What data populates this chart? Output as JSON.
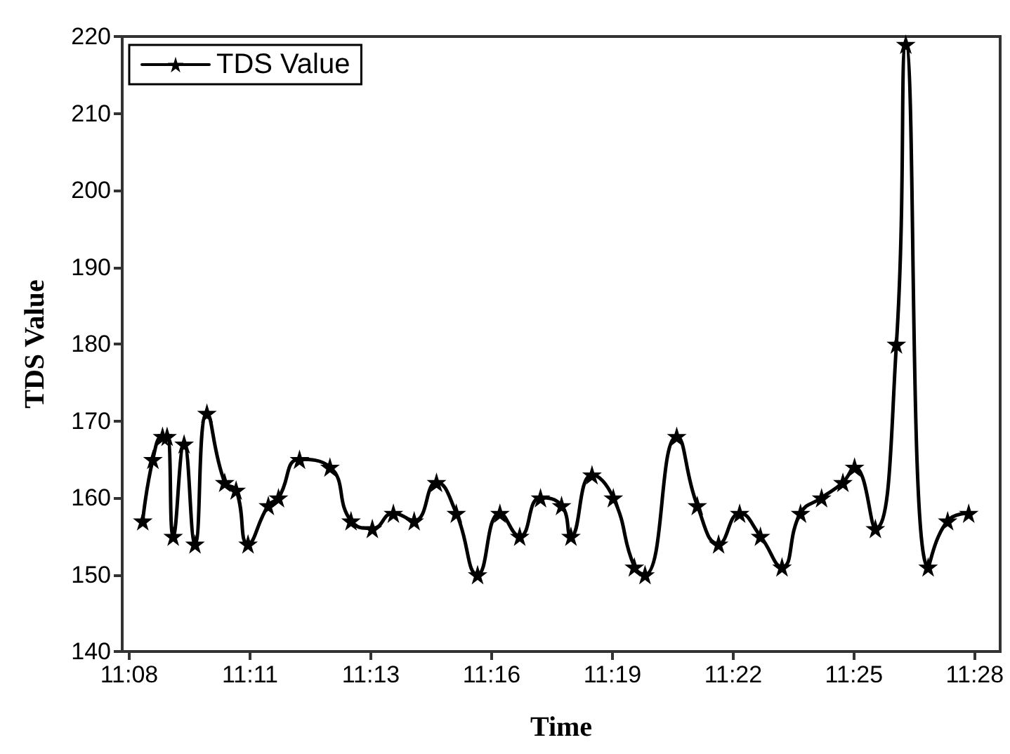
{
  "chart_data": {
    "type": "line",
    "xlabel": "Time",
    "ylabel": "TDS Value",
    "x": [
      11.1345,
      11.1385,
      11.1423,
      11.1441,
      11.1465,
      11.1508,
      11.1551,
      11.1598,
      11.1668,
      11.1713,
      11.176,
      11.184,
      11.188,
      11.1963,
      11.2083,
      11.2166,
      11.225,
      11.2333,
      11.2415,
      11.2503,
      11.2581,
      11.2665,
      11.2753,
      11.2831,
      11.2913,
      11.2996,
      11.3033,
      11.3116,
      11.32,
      11.3283,
      11.3325,
      11.345,
      11.3531,
      11.3615,
      11.3698,
      11.378,
      11.3865,
      11.3938,
      11.4021,
      11.4105,
      11.4151,
      11.4233,
      11.4316,
      11.4353,
      11.4441,
      11.4518,
      11.4601
    ],
    "series": [
      {
        "name": "TDS Value",
        "color": "#000000",
        "values": [
          157,
          165,
          168,
          168,
          155,
          167,
          154,
          171,
          162,
          161,
          154,
          159,
          160,
          165,
          164,
          157,
          156,
          158,
          157,
          162,
          158,
          150,
          158,
          155,
          160,
          159,
          155,
          163,
          160,
          151,
          150,
          168,
          159,
          154,
          158,
          155,
          151,
          158,
          160,
          162,
          164,
          156,
          180,
          219,
          151,
          157,
          158
        ]
      }
    ],
    "xlim": [
      11.1264,
      11.4725
    ],
    "xticks": [
      {
        "value": 11.12917,
        "label": "11:08"
      },
      {
        "value": 11.17679,
        "label": "11:11"
      },
      {
        "value": 11.2244,
        "label": "11:13"
      },
      {
        "value": 11.27202,
        "label": "11:16"
      },
      {
        "value": 11.31964,
        "label": "11:19"
      },
      {
        "value": 11.36726,
        "label": "11:22"
      },
      {
        "value": 11.41488,
        "label": "11:25"
      },
      {
        "value": 11.4625,
        "label": "11:28"
      }
    ],
    "ylim": [
      140,
      220
    ],
    "yticks": [
      140,
      150,
      160,
      170,
      180,
      190,
      200,
      210,
      220
    ],
    "grid": false,
    "legend": "top left",
    "marker": "star",
    "line_style": "solid"
  }
}
